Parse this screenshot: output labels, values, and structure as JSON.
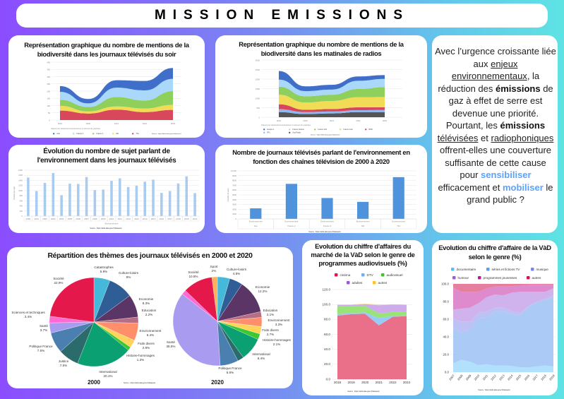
{
  "header": {
    "title": "MISSION EMISSIONS"
  },
  "colors": {
    "grid": "#e6e6e6",
    "axis_text": "#888888"
  },
  "intro": {
    "segments": [
      {
        "text": "Avec l’urgence croissante liée aux ",
        "style": ""
      },
      {
        "text": "enjeux environnementaux",
        "style": "u"
      },
      {
        "text": ", la réduction des ",
        "style": ""
      },
      {
        "text": "émissions",
        "style": "b"
      },
      {
        "text": " de gaz à effet de serre est devenue une priorité. Pourtant, les ",
        "style": ""
      },
      {
        "text": "émissions",
        "style": "b"
      },
      {
        "text": " ",
        "style": ""
      },
      {
        "text": "télévisées",
        "style": "u"
      },
      {
        "text": " et ",
        "style": ""
      },
      {
        "text": "radiophoniques",
        "style": "u"
      },
      {
        "text": " offrent-elles une couverture suffisante de cette cause pour ",
        "style": ""
      },
      {
        "text": "sensibiliser",
        "style": "h"
      },
      {
        "text": " efficacement et ",
        "style": ""
      },
      {
        "text": "mobiliser",
        "style": "h"
      },
      {
        "text": " le grand public ?",
        "style": ""
      }
    ]
  },
  "source_label": "Source : https://defis.data.gouv.fr/datasets/",
  "legend_hint": "Cliquez pour désélectionner/sélectionner un élément du graphique",
  "chart_data": [
    {
      "id": "tv_soir",
      "type": "area",
      "stacked": true,
      "title": "Représentation graphique du nombre de mentions de la biodiversité dans les journaux télévisés du soir",
      "x": [
        "2019",
        "2020",
        "2021",
        "2022",
        "2023"
      ],
      "ylim": [
        0,
        400
      ],
      "yticks": [
        "0",
        "50",
        "100",
        "150",
        "200",
        "250",
        "300",
        "350",
        "400"
      ],
      "series": [
        {
          "name": "TF1",
          "color": "#d9475c",
          "values": [
            65,
            45,
            72,
            55,
            70
          ]
        },
        {
          "name": "M6",
          "color": "#f2dc55",
          "values": [
            33,
            15,
            22,
            25,
            35
          ]
        },
        {
          "name": "France 3",
          "color": "#8fd05c",
          "values": [
            42,
            30,
            65,
            55,
            95
          ]
        },
        {
          "name": "France 2",
          "color": "#a9d8fb",
          "values": [
            55,
            25,
            65,
            70,
            85
          ]
        },
        {
          "name": "Arte",
          "color": "#3f6fc9",
          "values": [
            40,
            30,
            51,
            65,
            75
          ]
        }
      ],
      "legend_order": [
        "Arte",
        "France 2",
        "France 3",
        "M6",
        "TF1"
      ]
    },
    {
      "id": "radio",
      "type": "area",
      "stacked": true,
      "title": "Représentation graphique du nombre de mentions de la biodiversité dans les matinales de radios",
      "x": [
        "2019",
        "2020",
        "2021",
        "2022",
        "2023"
      ],
      "ylim": [
        0,
        3000
      ],
      "yticks": [
        "0",
        "500",
        "1000",
        "1500",
        "2000",
        "2500",
        "3000"
      ],
      "series": [
        {
          "name": "Sud Radio",
          "color": "#555555",
          "values": [
            270,
            170,
            200,
            270,
            270
          ]
        },
        {
          "name": "RTL",
          "color": "#8fb8f0",
          "values": [
            150,
            100,
            100,
            100,
            110
          ]
        },
        {
          "name": "RMC",
          "color": "#d9475c",
          "values": [
            260,
            120,
            130,
            150,
            140
          ]
        },
        {
          "name": "France Inter",
          "color": "#f2dc55",
          "values": [
            500,
            380,
            420,
            530,
            540
          ]
        },
        {
          "name": "France Info",
          "color": "#8fd05c",
          "values": [
            420,
            330,
            330,
            430,
            520
          ]
        },
        {
          "name": "France Culture",
          "color": "#a9d8fb",
          "values": [
            370,
            270,
            270,
            430,
            430
          ]
        },
        {
          "name": "Europe 1",
          "color": "#3f6fc9",
          "values": [
            450,
            250,
            250,
            230,
            200
          ]
        }
      ],
      "legend_order": [
        "Europe 1",
        "France Culture",
        "France Info",
        "France Inter",
        "RMC",
        "RTL",
        "Sud Radio"
      ]
    },
    {
      "id": "sujets",
      "type": "bar",
      "title": "Évolution du nombre de sujet parlant de l'environnement dans les journaux télévisés",
      "categories": [
        "2000",
        "2001",
        "2002",
        "2003",
        "2004",
        "2005",
        "2006",
        "2007",
        "2008",
        "2009",
        "2010",
        "2011",
        "2012",
        "2013",
        "2014",
        "2015",
        "2016",
        "2017",
        "2018",
        "2019",
        "2020"
      ],
      "values": [
        1510,
        980,
        1300,
        1690,
        820,
        1270,
        1260,
        1530,
        1020,
        1040,
        1380,
        1480,
        1140,
        1190,
        1350,
        1430,
        910,
        980,
        1280,
        1560,
        900
      ],
      "ylim": [
        0,
        1800
      ],
      "yticks": [
        "0",
        "200",
        "400",
        "600",
        "800",
        "1000",
        "1200",
        "1400",
        "1600",
        "1,800"
      ],
      "xlabel": "Environnement",
      "ylabel": "Nombre de sujet",
      "color": "#a8cbef"
    },
    {
      "id": "chaines",
      "type": "bar",
      "title": "Nombre de journaux télévisés parlant de l'environnement en fonction des chaînes télévision de 2000 à 2020",
      "categories": [
        "Arte",
        "France 2",
        "France 3",
        "M6",
        "TF1"
      ],
      "group_label": "Environnement",
      "values": [
        2200,
        7300,
        4350,
        3550,
        8700
      ],
      "ylim": [
        0,
        10000
      ],
      "yticks": [
        "0",
        "1000",
        "2000",
        "3000",
        "4000",
        "5000",
        "6000",
        "7000",
        "8000",
        "9000",
        "10,000"
      ],
      "ylabel": "Nombre de sujet",
      "color": "#4f93dc"
    },
    {
      "id": "themes",
      "type": "pie",
      "title": "Répartition des thèmes des journaux télévisés en 2000 et 2020",
      "pies": [
        {
          "name": "2000",
          "slices": [
            {
              "label": "Catastrophes",
              "value": 5.9,
              "pct": "5.9%",
              "color": "#45b9d9"
            },
            {
              "label": "Culture-loisirs",
              "value": 9,
              "pct": "9%",
              "color": "#2f5d96"
            },
            {
              "label": "Economie",
              "value": 8.3,
              "pct": "8.3%",
              "color": "#5b3566"
            },
            {
              "label": "Education",
              "value": 2.2,
              "pct": "2.2%",
              "color": "#b86e82"
            },
            {
              "label": "Environnement",
              "value": 6.4,
              "pct": "6.4%",
              "color": "#ff8f6b"
            },
            {
              "label": "Faits divers",
              "value": 2.8,
              "pct": "2.8%",
              "color": "#ffd25a"
            },
            {
              "label": "Histoire-hommages",
              "value": 1.3,
              "pct": "1.3%",
              "color": "#3cc832"
            },
            {
              "label": "International",
              "value": 20.1,
              "pct": "20.1%",
              "color": "#0aa072"
            },
            {
              "label": "Justice",
              "value": 7.5,
              "pct": "7.5%",
              "color": "#2c6b6b"
            },
            {
              "label": "Politique France",
              "value": 7.5,
              "pct": "7.5%",
              "color": "#4a7fb0"
            },
            {
              "label": "Santé",
              "value": 3.7,
              "pct": "3.7%",
              "color": "#a99cf0"
            },
            {
              "label": "Sciences et techniques",
              "value": 2.4,
              "pct": "2.4%",
              "color": "#ff6ad5"
            },
            {
              "label": "Société",
              "value": 22.9,
              "pct": "22.9%",
              "color": "#e5184b"
            }
          ]
        },
        {
          "name": "2020",
          "slices": [
            {
              "label": "",
              "value": 4.5,
              "pct": "",
              "color": "#45b9d9"
            },
            {
              "label": "Culture-loisirs",
              "value": 4.8,
              "pct": "4.8%",
              "color": "#2f5d96"
            },
            {
              "label": "Economie",
              "value": 12.2,
              "pct": "12.2%",
              "color": "#5b3566"
            },
            {
              "label": "Education",
              "value": 2.1,
              "pct": "2.1%",
              "color": "#b86e82"
            },
            {
              "label": "Environnement",
              "value": 3.3,
              "pct": "3.3%",
              "color": "#ff8f6b"
            },
            {
              "label": "Faits divers",
              "value": 2.7,
              "pct": "2.7%",
              "color": "#ffd25a"
            },
            {
              "label": "Histoire-hommages",
              "value": 2.1,
              "pct": "2.1%",
              "color": "#3cc832"
            },
            {
              "label": "International",
              "value": 8.4,
              "pct": "8.4%",
              "color": "#0aa072"
            },
            {
              "label": "",
              "value": 2.3,
              "pct": "",
              "color": "#2c6b6b"
            },
            {
              "label": "Politique France",
              "value": 6.6,
              "pct": "6.6%",
              "color": "#4a7fb0"
            },
            {
              "label": "Santé",
              "value": 36.5,
              "pct": "36.5%",
              "color": "#a99cf0"
            },
            {
              "label": "",
              "value": 1.7,
              "pct": "",
              "color": "#ff6ad5"
            },
            {
              "label": "Société",
              "value": 10.8,
              "pct": "10.8%",
              "color": "#e5184b"
            },
            {
              "label": "Sport",
              "value": 2,
              "pct": "2%",
              "color": "#ffb05a"
            }
          ]
        }
      ]
    },
    {
      "id": "vad_programmes",
      "type": "area",
      "stacked": true,
      "straight": true,
      "title": "Evolution du chiffre d'affaires du marché de la VàD selon le genre de programmes audiovisuels (%)",
      "x": [
        "2018",
        "2019",
        "2020",
        "2021",
        "2022",
        "2023"
      ],
      "ylim": [
        0,
        120
      ],
      "yticks": [
        "0.0",
        "20.0",
        "40.0",
        "60.0",
        "80.0",
        "100.0",
        "120.0"
      ],
      "series": [
        {
          "name": "cinéma",
          "color": "#e8607c",
          "values": [
            85,
            87,
            87.5,
            72,
            83.5,
            84.5
          ]
        },
        {
          "name": "DTV",
          "color": "#8fc4f5",
          "values": [
            2,
            1.5,
            2,
            10,
            1,
            1
          ]
        },
        {
          "name": "audiovisuel",
          "color": "#8ee06a",
          "values": [
            10.5,
            9.5,
            9,
            6,
            5.5,
            5.5
          ]
        },
        {
          "name": "adultes",
          "color": "#c9a3ea",
          "values": [
            2,
            1.5,
            2,
            11,
            10,
            8.5
          ]
        },
        {
          "name": "autres",
          "color": "#ffd76a",
          "values": [
            0.5,
            0.5,
            0.5,
            1,
            0,
            0.5
          ]
        }
      ],
      "legend_order": [
        "cinéma",
        "DTV",
        "audiovisuel",
        "adultes",
        "autres"
      ],
      "legend_colors": {
        "cinéma": "#e0174e",
        "DTV": "#6fb0f5",
        "audiovisuel": "#43c22c",
        "adultes": "#9a55d8",
        "autres": "#ffc61a"
      }
    },
    {
      "id": "vad_genre",
      "type": "area",
      "stacked": true,
      "straight": true,
      "title": "Evolution du chiffre d'affaire de la VàD selon le genre (%)",
      "x": [
        "2007",
        "2008",
        "2009",
        "2010",
        "2011",
        "2012",
        "2013",
        "2014",
        "2015",
        "2016",
        "2017",
        "2018",
        "2019"
      ],
      "ylim": [
        0,
        100
      ],
      "yticks": [
        "0.0",
        "20.0",
        "40.0",
        "60.0",
        "80.0",
        "100.0"
      ],
      "series": [
        {
          "name": "documentaire",
          "color": "#a3dcfb",
          "values": [
            10,
            14,
            12,
            8,
            9,
            7.5,
            7.5,
            7,
            5.5,
            5.5,
            6.5,
            7.5,
            6.5
          ]
        },
        {
          "name": "séries et fictions TV",
          "color": "#9cc2f5",
          "values": [
            40,
            31,
            36,
            53,
            53,
            60.5,
            61.5,
            59,
            58.5,
            68.5,
            72.5,
            73.5,
            79.5
          ]
        },
        {
          "name": "musique",
          "color": "#b3b6f2",
          "values": [
            11,
            12,
            9,
            6,
            7,
            5,
            4,
            3,
            3,
            1,
            1,
            2,
            1
          ]
        },
        {
          "name": "humour",
          "color": "#c8a6ea",
          "values": [
            10,
            15,
            16,
            11,
            16,
            15,
            14,
            21,
            24,
            16,
            11,
            8,
            8
          ]
        },
        {
          "name": "programmes jeunesses",
          "color": "#d875c4",
          "values": [
            25,
            19,
            18,
            13,
            10,
            9,
            10,
            7.5,
            7,
            8,
            8,
            8,
            4
          ]
        },
        {
          "name": "autres",
          "color": "#e2678c",
          "values": [
            4,
            9,
            9,
            9,
            5,
            3,
            3,
            2.5,
            2,
            1,
            1,
            1,
            1
          ]
        }
      ],
      "legend_order": [
        "documentaire",
        "séries et fictions TV",
        "musique",
        "humour",
        "programmes jeunesses",
        "autres"
      ],
      "legend_colors": {
        "documentaire": "#4fc3f7",
        "séries et fictions TV": "#5c9ef0",
        "musique": "#7b86e8",
        "humour": "#a259d6",
        "programmes jeunesses": "#b8179c",
        "autres": "#d61158"
      }
    }
  ]
}
